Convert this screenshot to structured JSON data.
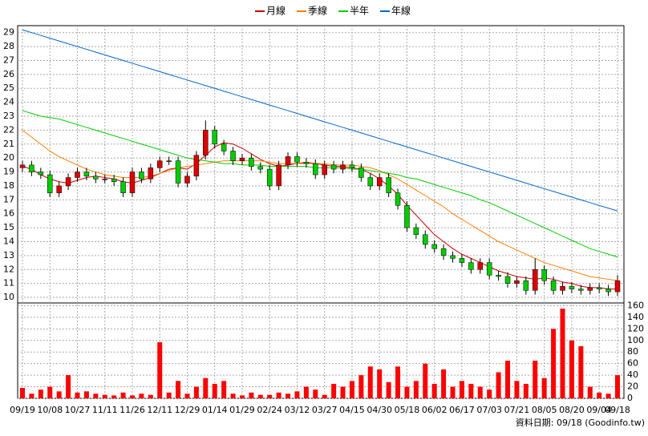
{
  "chart_data": {
    "type": "candlestick",
    "categories": [
      "09/19",
      null,
      null,
      "10/08",
      null,
      null,
      "10/27",
      null,
      null,
      "11/11",
      null,
      null,
      "11/26",
      null,
      null,
      "12/11",
      null,
      null,
      "12/29",
      null,
      null,
      "01/14",
      null,
      null,
      "01/29",
      null,
      null,
      "02/24",
      null,
      null,
      "03/12",
      null,
      null,
      "03/27",
      null,
      null,
      "04/15",
      null,
      null,
      "04/30",
      null,
      null,
      "05/18",
      null,
      null,
      "06/02",
      null,
      null,
      "06/17",
      null,
      null,
      "07/03",
      null,
      null,
      "07/21",
      null,
      null,
      "08/05",
      null,
      null,
      "08/20",
      null,
      null,
      "09/04",
      null,
      "09/18"
    ],
    "open": [
      19.3,
      19.5,
      19.0,
      18.8,
      17.5,
      18.0,
      18.6,
      19.0,
      18.7,
      18.5,
      18.5,
      18.3,
      17.5,
      19.0,
      18.5,
      19.3,
      19.8,
      19.8,
      18.2,
      18.7,
      20.2,
      22.0,
      21.0,
      20.5,
      19.8,
      20.0,
      19.4,
      19.2,
      18.0,
      19.5,
      20.1,
      19.7,
      19.6,
      18.8,
      19.5,
      19.2,
      19.5,
      19.3,
      18.6,
      18.0,
      18.6,
      17.5,
      16.6,
      15.0,
      14.5,
      13.8,
      13.5,
      13.0,
      12.8,
      12.5,
      12.0,
      12.5,
      11.6,
      11.5,
      11.0,
      11.2,
      10.5,
      12.0,
      11.2,
      10.5,
      10.8,
      10.6,
      10.5,
      10.7,
      10.6,
      10.4
    ],
    "high": [
      19.8,
      19.8,
      19.3,
      19.1,
      18.3,
      18.9,
      19.3,
      19.3,
      19.0,
      18.8,
      18.8,
      18.6,
      19.3,
      19.3,
      19.6,
      20.1,
      20.1,
      20.1,
      19.0,
      20.5,
      22.7,
      22.3,
      21.3,
      20.8,
      20.3,
      20.3,
      19.7,
      19.5,
      19.8,
      20.4,
      20.4,
      20.0,
      19.9,
      19.8,
      19.8,
      19.8,
      19.8,
      19.6,
      18.9,
      18.9,
      18.9,
      17.8,
      16.9,
      15.3,
      14.8,
      14.1,
      13.8,
      13.3,
      13.1,
      12.8,
      12.8,
      12.8,
      11.9,
      11.8,
      11.5,
      11.5,
      12.8,
      12.3,
      11.5,
      11.1,
      11.1,
      10.9,
      11.0,
      11.0,
      10.9,
      11.6
    ],
    "low": [
      19.0,
      18.7,
      18.5,
      17.2,
      17.2,
      17.7,
      18.3,
      18.4,
      18.2,
      18.2,
      18.0,
      17.2,
      17.2,
      18.2,
      18.2,
      19.0,
      19.5,
      17.9,
      17.9,
      18.4,
      19.9,
      20.7,
      20.2,
      19.5,
      19.5,
      19.1,
      18.9,
      17.7,
      17.7,
      19.2,
      19.4,
      19.3,
      18.5,
      18.5,
      18.9,
      18.9,
      19.0,
      18.3,
      17.7,
      17.7,
      17.2,
      16.3,
      14.7,
      14.2,
      13.5,
      13.2,
      12.7,
      12.5,
      12.2,
      11.7,
      11.7,
      11.3,
      11.2,
      10.7,
      10.7,
      10.2,
      10.2,
      10.9,
      10.2,
      10.2,
      10.3,
      10.2,
      10.2,
      10.3,
      10.1,
      10.1
    ],
    "close": [
      19.5,
      19.0,
      18.8,
      17.5,
      18.0,
      18.6,
      19.0,
      18.7,
      18.5,
      18.5,
      18.3,
      17.5,
      19.0,
      18.5,
      19.3,
      19.8,
      19.8,
      18.2,
      18.7,
      20.2,
      22.0,
      21.0,
      20.5,
      19.8,
      20.0,
      19.4,
      19.2,
      18.0,
      19.5,
      20.1,
      19.7,
      19.6,
      18.8,
      19.5,
      19.2,
      19.5,
      19.3,
      18.6,
      18.0,
      18.6,
      17.5,
      16.6,
      15.0,
      14.5,
      13.8,
      13.5,
      13.0,
      12.8,
      12.5,
      12.0,
      12.5,
      11.6,
      11.5,
      11.0,
      11.2,
      10.5,
      12.0,
      11.2,
      10.5,
      10.8,
      10.6,
      10.5,
      10.7,
      10.6,
      10.4,
      11.2
    ],
    "up_color": "#dd0000",
    "down_color": "#00cc00",
    "series": [
      {
        "name": "月線",
        "color": "#cc0000",
        "values": [
          19.4,
          19.2,
          18.8,
          18.5,
          18.3,
          18.2,
          18.4,
          18.6,
          18.7,
          18.6,
          18.5,
          18.3,
          18.2,
          18.4,
          18.6,
          18.9,
          19.2,
          19.3,
          19.2,
          19.6,
          20.2,
          20.8,
          21.1,
          21.0,
          20.7,
          20.3,
          19.9,
          19.6,
          19.4,
          19.5,
          19.6,
          19.7,
          19.6,
          19.5,
          19.4,
          19.4,
          19.3,
          19.2,
          18.9,
          18.5,
          18.0,
          17.4,
          16.6,
          15.9,
          15.2,
          14.5,
          14.0,
          13.5,
          13.1,
          12.8,
          12.5,
          12.2,
          11.9,
          11.7,
          11.5,
          11.4,
          11.3,
          11.4,
          11.3,
          11.1,
          11.0,
          10.8,
          10.7,
          10.7,
          10.6,
          10.6
        ]
      },
      {
        "name": "季線",
        "color": "#ff7f00",
        "values": [
          22.0,
          21.5,
          21.0,
          20.5,
          20.1,
          19.8,
          19.5,
          19.2,
          19.0,
          18.8,
          18.7,
          18.6,
          18.6,
          18.6,
          18.7,
          18.9,
          19.1,
          19.3,
          19.4,
          19.5,
          19.6,
          19.7,
          19.8,
          19.8,
          19.8,
          19.8,
          19.8,
          19.7,
          19.6,
          19.6,
          19.6,
          19.6,
          19.6,
          19.6,
          19.5,
          19.5,
          19.5,
          19.4,
          19.3,
          19.1,
          18.8,
          18.5,
          18.1,
          17.7,
          17.3,
          16.9,
          16.5,
          16.0,
          15.6,
          15.2,
          14.8,
          14.4,
          14.0,
          13.7,
          13.4,
          13.1,
          12.8,
          12.5,
          12.3,
          12.1,
          11.9,
          11.7,
          11.5,
          11.4,
          11.3,
          11.2
        ]
      },
      {
        "name": "半年",
        "color": "#00cc00",
        "values": [
          23.4,
          23.2,
          23.0,
          22.9,
          22.8,
          22.6,
          22.4,
          22.2,
          22.0,
          21.8,
          21.6,
          21.4,
          21.2,
          21.0,
          20.8,
          20.6,
          20.4,
          20.2,
          20.0,
          19.9,
          19.8,
          19.7,
          19.6,
          19.6,
          19.5,
          19.5,
          19.5,
          19.4,
          19.4,
          19.4,
          19.4,
          19.4,
          19.3,
          19.3,
          19.3,
          19.3,
          19.2,
          19.2,
          19.1,
          19.0,
          18.9,
          18.8,
          18.6,
          18.5,
          18.3,
          18.1,
          17.9,
          17.7,
          17.5,
          17.3,
          17.0,
          16.8,
          16.5,
          16.2,
          15.9,
          15.6,
          15.3,
          15.0,
          14.7,
          14.4,
          14.1,
          13.8,
          13.5,
          13.3,
          13.1,
          12.9
        ]
      },
      {
        "name": "年線",
        "color": "#0066cc",
        "values": [
          29.2,
          29.0,
          28.8,
          28.6,
          28.4,
          28.2,
          28.0,
          27.8,
          27.6,
          27.4,
          27.2,
          27.0,
          26.8,
          26.6,
          26.4,
          26.2,
          26.0,
          25.8,
          25.6,
          25.4,
          25.2,
          25.0,
          24.8,
          24.6,
          24.4,
          24.2,
          24.0,
          23.8,
          23.6,
          23.4,
          23.2,
          23.0,
          22.8,
          22.6,
          22.4,
          22.2,
          22.0,
          21.8,
          21.6,
          21.4,
          21.2,
          21.0,
          20.8,
          20.6,
          20.4,
          20.2,
          20.0,
          19.8,
          19.6,
          19.4,
          19.2,
          19.0,
          18.8,
          18.6,
          18.4,
          18.2,
          18.0,
          17.8,
          17.6,
          17.4,
          17.2,
          17.0,
          16.8,
          16.6,
          16.4,
          16.2
        ]
      }
    ],
    "ylim": [
      9.6,
      29.5
    ],
    "yticks": [
      10,
      11,
      12,
      13,
      14,
      15,
      16,
      17,
      18,
      19,
      20,
      21,
      22,
      23,
      24,
      25,
      26,
      27,
      28,
      29
    ],
    "volume": {
      "color": "#ff0000",
      "values": [
        18,
        8,
        15,
        20,
        12,
        40,
        10,
        12,
        8,
        6,
        5,
        10,
        5,
        8,
        6,
        97,
        10,
        30,
        8,
        20,
        35,
        25,
        30,
        8,
        5,
        10,
        6,
        6,
        10,
        8,
        12,
        20,
        15,
        6,
        25,
        20,
        30,
        40,
        55,
        50,
        28,
        55,
        20,
        30,
        60,
        25,
        50,
        20,
        30,
        25,
        20,
        15,
        45,
        65,
        30,
        25,
        65,
        35,
        120,
        155,
        100,
        90,
        20,
        10,
        8,
        40
      ],
      "ylim": [
        0,
        162
      ],
      "yticks": [
        0,
        20,
        40,
        60,
        80,
        100,
        120,
        140,
        160
      ]
    },
    "grid": true,
    "footer": "資料日期: 09/18  (Goodinfo.tw)"
  }
}
